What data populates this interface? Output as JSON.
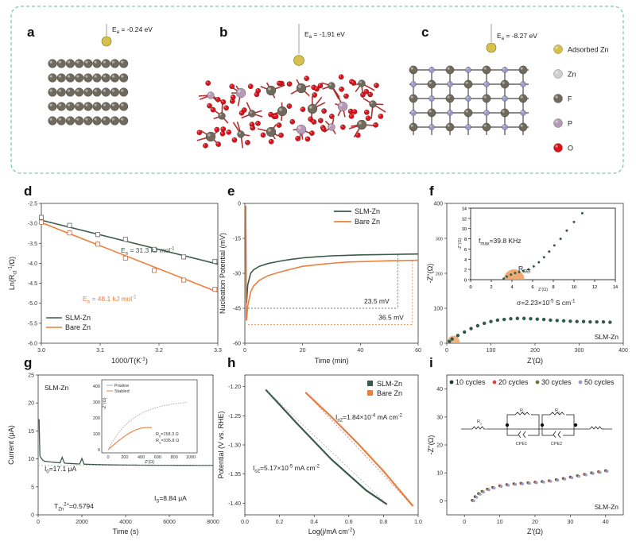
{
  "colors": {
    "dark_green": "#3c5a4a",
    "orange": "#ee7f3b",
    "teal_dots": "#2e5a4c",
    "red_dots": "#e0483c",
    "gray_atom": "#6f6a5c",
    "red_atom": "#d8141c",
    "purple_atom": "#b79ab6",
    "blue_atom": "#9a9acb",
    "zn_atom": "#d4c24c",
    "frame": "#7fc7b5"
  },
  "panel_a": {
    "label": "a",
    "energy": "E",
    "energy_sub": "a",
    "energy_value": " = -0.24 eV"
  },
  "panel_b": {
    "label": "b",
    "energy": "E",
    "energy_sub": "a",
    "energy_value": " = -1.91 eV"
  },
  "panel_c": {
    "label": "c",
    "energy": "E",
    "energy_sub": "a",
    "energy_value": " = -8.27 eV"
  },
  "legend_atoms": [
    {
      "label": "Adsorbed Zn",
      "icon": "adsorbed-zn-ball"
    },
    {
      "label": "Zn",
      "icon": "zn-ball"
    },
    {
      "label": "F",
      "icon": "f-ball"
    },
    {
      "label": "P",
      "icon": "p-ball"
    },
    {
      "label": "O",
      "icon": "o-ball"
    }
  ],
  "chart_data": [
    {
      "panel": "d",
      "type": "scatter",
      "xlabel": "1000/T(K",
      "xlabel_sup": "-1",
      "xlabel_end": ")",
      "ylabel": "Ln(R",
      "ylabel_sub": "ct",
      "ylabel_sup": "-1",
      "ylabel_mid": "/Ω",
      "ylabel_end": ")",
      "xlim": [
        3.0,
        3.3
      ],
      "ylim": [
        -6.0,
        -2.5
      ],
      "xticks": [
        "3.0",
        "3.1",
        "3.2",
        "3.3"
      ],
      "yticks": [
        "-2.5",
        "-3.0",
        "-3.5",
        "-4.0",
        "-4.5",
        "-5.0",
        "-5.5",
        "-6.0"
      ],
      "legend": [
        "SLM-Zn",
        "Bare Zn"
      ],
      "series": [
        {
          "name": "SLM-Zn",
          "x": [
            3.0,
            3.048,
            3.096,
            3.143,
            3.192,
            3.242,
            3.295
          ],
          "y": [
            -2.85,
            -3.05,
            -3.28,
            -3.4,
            -3.65,
            -3.84,
            -3.95
          ],
          "fit": [
            [
              3.0,
              -2.92
            ],
            [
              3.3,
              -4.02
            ]
          ],
          "annotation": "E",
          "annotation_sub": "a",
          "annotation_value": " = 31.3 kJ mol",
          "annotation_sup": "-1"
        },
        {
          "name": "Bare Zn",
          "x": [
            3.0,
            3.048,
            3.096,
            3.143,
            3.192,
            3.242,
            3.295
          ],
          "y": [
            -2.97,
            -3.24,
            -3.52,
            -3.87,
            -4.18,
            -4.42,
            -4.65
          ],
          "fit": [
            [
              3.0,
              -2.98
            ],
            [
              3.3,
              -4.72
            ]
          ],
          "annotation": "E",
          "annotation_sub": "a",
          "annotation_value": " = 48.1 kJ mol",
          "annotation_sup": "-1"
        }
      ]
    },
    {
      "panel": "e",
      "type": "line",
      "xlabel": "Time (min)",
      "ylabel": "Nucleation Potential (mV)",
      "xlim": [
        0,
        60
      ],
      "ylim": [
        -60,
        0
      ],
      "xticks": [
        "0",
        "20",
        "40",
        "60"
      ],
      "yticks": [
        "0",
        "-15",
        "-30",
        "-45",
        "-60"
      ],
      "legend": [
        "SLM-Zn",
        "Bare Zn"
      ],
      "series": [
        {
          "name": "SLM-Zn",
          "x": [
            0.6,
            1,
            2,
            3,
            5,
            8,
            12,
            16,
            20,
            25,
            30,
            35,
            40,
            45,
            50,
            55,
            60
          ],
          "y": [
            -42.5,
            -35,
            -30,
            -28.5,
            -27,
            -25.8,
            -24.8,
            -24,
            -23.4,
            -22.9,
            -22.5,
            -22.3,
            -22.1,
            -22,
            -21.9,
            -21.8,
            -21.7
          ]
        },
        {
          "name": "Bare Zn",
          "x": [
            0.6,
            1,
            2,
            3,
            5,
            8,
            12,
            16,
            20,
            25,
            30,
            35,
            40,
            45,
            50,
            55,
            60
          ],
          "y": [
            -50,
            -44,
            -38,
            -35.5,
            -33,
            -31,
            -29.5,
            -28.2,
            -27,
            -26.3,
            -25.7,
            -25.2,
            -25,
            -24.8,
            -24.6,
            -24.5,
            -24.4
          ]
        }
      ],
      "annotations": [
        "23.5 mV",
        "36.5 mV"
      ]
    },
    {
      "panel": "f",
      "type": "scatter",
      "xlabel": "Z'(Ω)",
      "ylabel": "-Z''(Ω)",
      "xlim": [
        0,
        400
      ],
      "ylim": [
        0,
        400
      ],
      "xticks": [
        "0",
        "100",
        "200",
        "300",
        "400"
      ],
      "yticks": [
        "0",
        "100",
        "200",
        "300",
        "400"
      ],
      "sample": "SLM-Zn",
      "conductivity": "σ=2.23×10",
      "conductivity_sup": "-5",
      "conductivity_end": " S cm",
      "conductivity_unit_sup": "-1",
      "series": [
        {
          "name": "",
          "x": [
            6,
            12,
            25,
            40,
            55,
            70,
            85,
            100,
            115,
            130,
            145,
            160,
            175,
            190,
            205,
            220,
            235,
            250,
            265,
            280,
            295,
            310,
            325,
            340,
            355,
            370
          ],
          "y": [
            5,
            12,
            22,
            32,
            42,
            50,
            57,
            62,
            66,
            68,
            70,
            71,
            71,
            70,
            69,
            68,
            66,
            65,
            64,
            63,
            62,
            62,
            61,
            61,
            61,
            60
          ]
        }
      ],
      "inset": {
        "xlabel": "Z'(Ω)",
        "ylabel": "-Z''(Ω)",
        "xlim": [
          0,
          14
        ],
        "ylim": [
          0,
          14
        ],
        "xticks": [
          "0",
          "2",
          "4",
          "6",
          "8",
          "10",
          "12",
          "14"
        ],
        "yticks": [
          "0",
          "2",
          "4",
          "6",
          "8",
          "10",
          "12",
          "14"
        ],
        "freq_label": "f",
        "freq_sub": "max",
        "freq_value": "=39.8 KHz",
        "r_label": "R",
        "r_sub": "SEI",
        "x": [
          3.2,
          3.5,
          3.9,
          4.3,
          4.7,
          5.1,
          5.6,
          6.1,
          6.6,
          7.1,
          7.6,
          8.1,
          8.7,
          9.3,
          10.0,
          10.8
        ],
        "y": [
          0.2,
          0.6,
          1.0,
          1.3,
          1.5,
          1.7,
          2.0,
          2.6,
          3.4,
          4.4,
          5.5,
          6.7,
          8.0,
          9.6,
          11.3,
          13.0
        ]
      }
    },
    {
      "panel": "g",
      "type": "line",
      "xlabel": "Time (s)",
      "ylabel": "Current (μA)",
      "xlim": [
        0,
        8000
      ],
      "ylim": [
        0,
        25
      ],
      "xticks": [
        "0",
        "2000",
        "4000",
        "6000",
        "8000"
      ],
      "yticks": [
        "0",
        "5",
        "10",
        "15",
        "20",
        "25"
      ],
      "sample": "SLM-Zn",
      "i0_label": "I",
      "i0_sub": "0",
      "i0_value": "=17.1 μA",
      "is_label": "I",
      "is_sub": "S",
      "is_value": "=8.84 μA",
      "t_label": "T",
      "t_sub": "Zn",
      "t_sup": "2+",
      "t_value": "=0.5794",
      "inset": {
        "legend": [
          "Pristine",
          "Stabled"
        ],
        "xlabel": "Z'(Ω)",
        "ylabel": "-Z''(Ω)",
        "xticks": [
          "0",
          "200",
          "400",
          "600",
          "800",
          "1000"
        ],
        "yticks": [
          "0",
          "100",
          "200",
          "300",
          "400"
        ],
        "r0_label": "R",
        "r0_sub": "0",
        "r0_value": "=158.3 Ω",
        "rs_label": "R",
        "rs_sub": "S",
        "rs_value": "=335.8 Ω"
      }
    },
    {
      "panel": "h",
      "type": "line",
      "xlabel": "Log(j/mA cm",
      "xlabel_sup": "-2",
      "xlabel_end": ")",
      "ylabel": "Potential (V vs. RHE)",
      "xlim": [
        0.0,
        1.0
      ],
      "ylim": [
        -1.42,
        -1.18
      ],
      "xticks": [
        "0.0",
        "0.2",
        "0.4",
        "0.6",
        "0.8",
        "1.0"
      ],
      "yticks": [
        "-1.20",
        "-1.25",
        "-1.30",
        "-1.35",
        "-1.40"
      ],
      "legend": [
        "SLM-Zn",
        "Bare Zn"
      ],
      "series": [
        {
          "name": "SLM-Zn",
          "x": [
            0.12,
            0.3,
            0.5,
            0.7,
            0.82
          ],
          "y": [
            -1.205,
            -1.263,
            -1.325,
            -1.378,
            -1.402
          ],
          "annotation": "I",
          "annotation_sub": "o2",
          "annotation_value": "=5.17×10",
          "annotation_sup": "-5",
          "annotation_unit": " mA cm",
          "annotation_unit_sup": "-2"
        },
        {
          "name": "Bare Zn",
          "x": [
            0.35,
            0.5,
            0.65,
            0.8,
            0.97
          ],
          "y": [
            -1.21,
            -1.252,
            -1.297,
            -1.345,
            -1.405
          ],
          "annotation": "I",
          "annotation_sub": "o2",
          "annotation_value": "=1.84×10",
          "annotation_sup": "-4",
          "annotation_unit": " mA cm",
          "annotation_unit_sup": "-2"
        }
      ]
    },
    {
      "panel": "i",
      "type": "scatter",
      "xlabel": "Z'(Ω)",
      "ylabel": "-Z''(Ω)",
      "xlim": [
        -5,
        45
      ],
      "ylim": [
        -5,
        45
      ],
      "xticks": [
        "0",
        "10",
        "20",
        "30",
        "40"
      ],
      "yticks": [
        "0",
        "10",
        "20",
        "30",
        "40"
      ],
      "sample": "SLM-Zn",
      "legend": [
        "10 cycles",
        "20 cycles",
        "30 cycles",
        "50 cycles"
      ],
      "circuit_labels": [
        "R",
        "R",
        "R",
        "CPE1",
        "CPE2"
      ],
      "circuit_subs": [
        "s",
        "1",
        "2",
        "",
        ""
      ],
      "series": [
        {
          "name": "10 cycles",
          "x": [
            2.2,
            3,
            4,
            5,
            6.5,
            8,
            10,
            12,
            14,
            16,
            18,
            20,
            22,
            24,
            26,
            28,
            30,
            32,
            34,
            36,
            38,
            40
          ],
          "y": [
            0.2,
            1.5,
            2.6,
            3.4,
            4.2,
            4.8,
            5.4,
            5.8,
            6.1,
            6.3,
            6.5,
            6.7,
            6.9,
            7.2,
            7.6,
            8.0,
            8.5,
            9.0,
            9.5,
            10.0,
            10.4,
            10.8
          ]
        }
      ]
    }
  ]
}
